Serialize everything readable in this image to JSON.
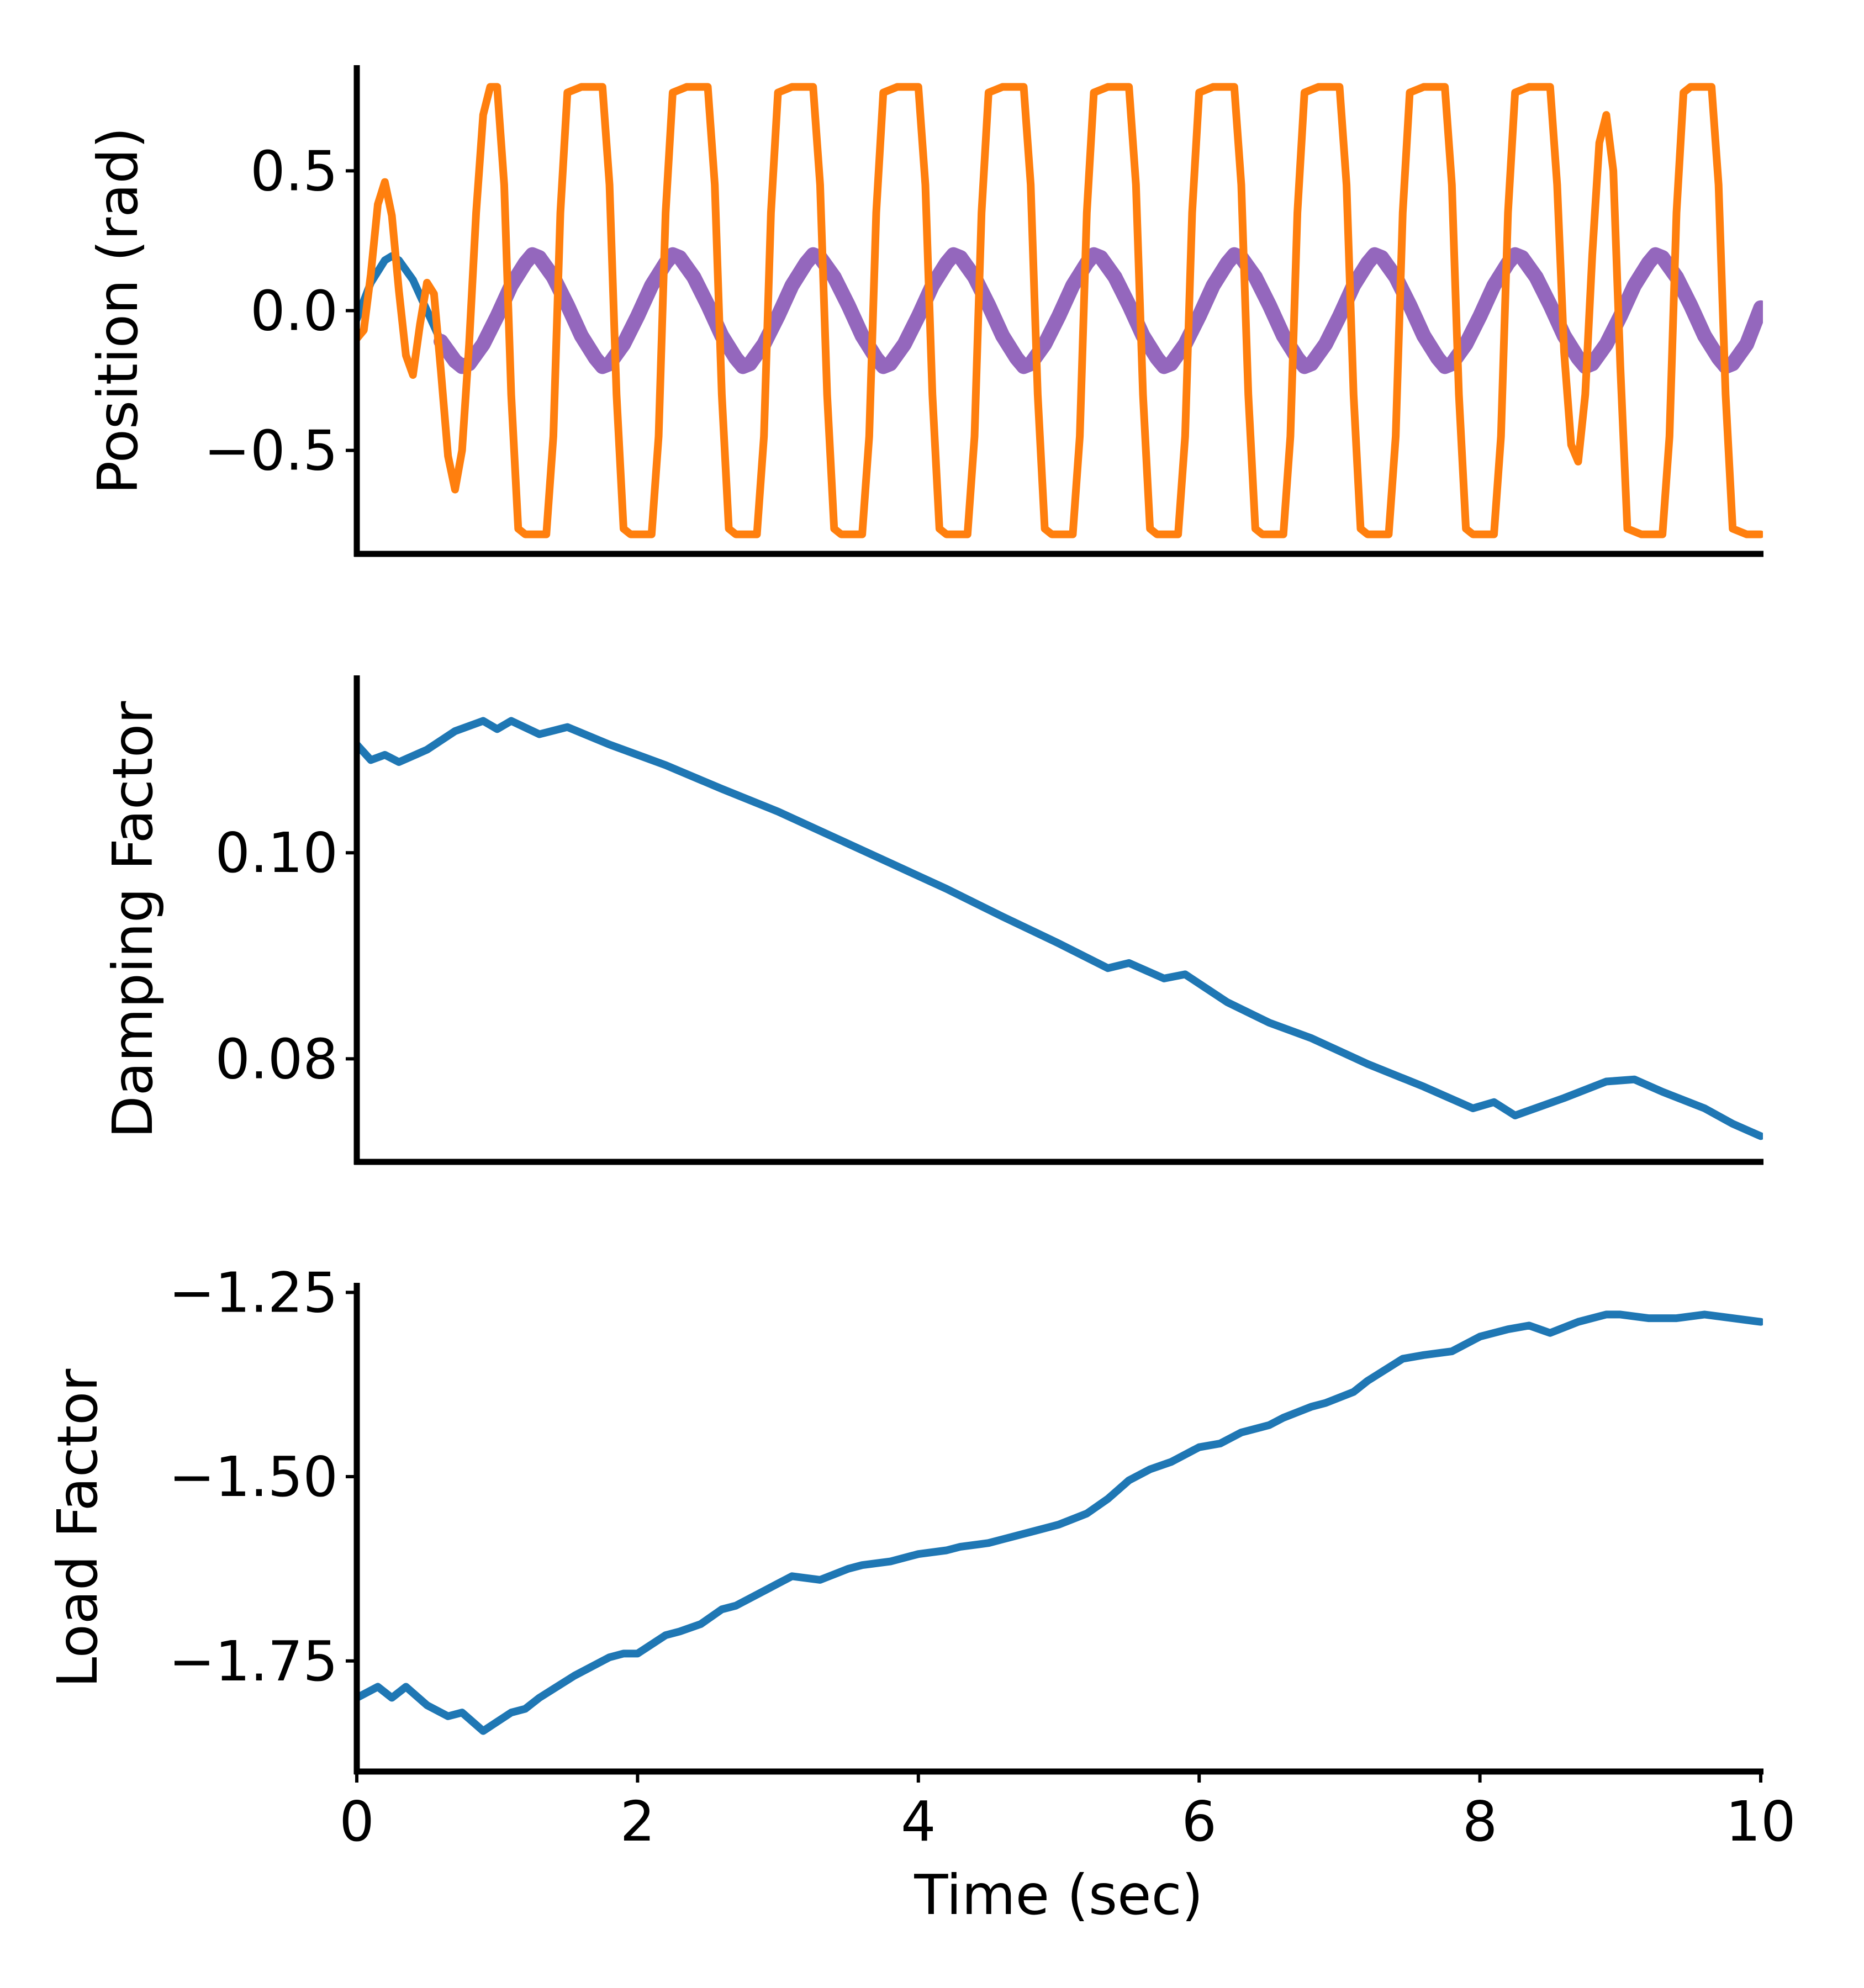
{
  "colors": {
    "series_blue": "#1f77b4",
    "series_orange": "#ff7f0e",
    "series_purple": "#9467bd",
    "axis": "#000000"
  },
  "chart_data": [
    {
      "type": "line",
      "ylabel": "Position (rad)",
      "xlabel": "",
      "xlim": [
        0,
        10
      ],
      "ylim": [
        -0.87,
        0.87
      ],
      "grid": false,
      "legend": "none",
      "yticks": [
        0.5,
        0.0,
        -0.5
      ],
      "ytick_labels": [
        "0.5",
        "0.0",
        "−0.5"
      ],
      "xticks": [],
      "series": [
        {
          "color": "#1f77b4",
          "x": [
            0,
            0.1,
            0.2,
            0.25,
            0.3,
            0.4,
            0.5,
            0.6,
            0.7,
            0.75,
            0.8,
            0.9,
            1.0,
            1.1,
            1.2,
            1.25
          ],
          "y": [
            -0.03,
            0.1,
            0.18,
            0.195,
            0.18,
            0.11,
            0.0,
            -0.11,
            -0.18,
            -0.195,
            -0.19,
            -0.12,
            -0.02,
            0.09,
            0.17,
            0.2
          ]
        },
        {
          "color": "#9467bd",
          "x": [
            0.6,
            0.7,
            0.75,
            0.8,
            0.9,
            1.0,
            1.1,
            1.2,
            1.25,
            1.3,
            1.4,
            1.5,
            1.6,
            1.7,
            1.75,
            1.8,
            1.9,
            2.0,
            2.1,
            2.2,
            2.25,
            2.3,
            2.4,
            2.5,
            2.6,
            2.7,
            2.75,
            2.8,
            2.9,
            3.0,
            3.1,
            3.2,
            3.25,
            3.3,
            3.4,
            3.5,
            3.6,
            3.7,
            3.75,
            3.8,
            3.9,
            4.0,
            4.1,
            4.2,
            4.25,
            4.3,
            4.4,
            4.5,
            4.6,
            4.7,
            4.75,
            4.8,
            4.9,
            5.0,
            5.1,
            5.2,
            5.25,
            5.3,
            5.4,
            5.5,
            5.6,
            5.7,
            5.75,
            5.8,
            5.9,
            6.0,
            6.1,
            6.2,
            6.25,
            6.3,
            6.4,
            6.5,
            6.6,
            6.7,
            6.75,
            6.8,
            6.9,
            7.0,
            7.1,
            7.2,
            7.25,
            7.3,
            7.4,
            7.5,
            7.6,
            7.7,
            7.75,
            7.8,
            7.9,
            8.0,
            8.1,
            8.2,
            8.25,
            8.3,
            8.4,
            8.5,
            8.6,
            8.7,
            8.75,
            8.8,
            8.9,
            9.0,
            9.1,
            9.2,
            9.25,
            9.3,
            9.4,
            9.5,
            9.6,
            9.7,
            9.75,
            9.8,
            9.9,
            10.0
          ],
          "y": [
            -0.11,
            -0.18,
            -0.2,
            -0.19,
            -0.12,
            -0.02,
            0.09,
            0.17,
            0.2,
            0.19,
            0.12,
            0.02,
            -0.09,
            -0.17,
            -0.2,
            -0.19,
            -0.12,
            -0.02,
            0.09,
            0.17,
            0.2,
            0.19,
            0.12,
            0.02,
            -0.09,
            -0.17,
            -0.2,
            -0.19,
            -0.12,
            -0.02,
            0.09,
            0.17,
            0.2,
            0.19,
            0.12,
            0.02,
            -0.09,
            -0.17,
            -0.2,
            -0.19,
            -0.12,
            -0.02,
            0.09,
            0.17,
            0.2,
            0.19,
            0.12,
            0.02,
            -0.09,
            -0.17,
            -0.2,
            -0.19,
            -0.12,
            -0.02,
            0.09,
            0.17,
            0.2,
            0.19,
            0.12,
            0.02,
            -0.09,
            -0.17,
            -0.2,
            -0.19,
            -0.12,
            -0.02,
            0.09,
            0.17,
            0.2,
            0.19,
            0.12,
            0.02,
            -0.09,
            -0.17,
            -0.2,
            -0.19,
            -0.12,
            -0.02,
            0.09,
            0.17,
            0.2,
            0.19,
            0.12,
            0.02,
            -0.09,
            -0.17,
            -0.2,
            -0.19,
            -0.12,
            -0.02,
            0.09,
            0.17,
            0.2,
            0.19,
            0.12,
            0.02,
            -0.09,
            -0.17,
            -0.2,
            -0.19,
            -0.12,
            -0.02,
            0.09,
            0.17,
            0.2,
            0.19,
            0.12,
            0.02,
            -0.09,
            -0.17,
            -0.2,
            -0.19,
            -0.12,
            0.01
          ]
        },
        {
          "color": "#ff7f0e",
          "x": [
            0,
            0.05,
            0.1,
            0.15,
            0.2,
            0.25,
            0.3,
            0.35,
            0.4,
            0.45,
            0.5,
            0.55,
            0.6,
            0.65,
            0.7,
            0.75,
            0.8,
            0.85,
            0.9,
            0.95,
            1.0,
            1.05,
            1.1,
            1.15,
            1.2,
            1.35,
            1.4,
            1.45,
            1.5,
            1.6,
            1.75,
            1.8,
            1.85,
            1.9,
            1.95,
            2.1,
            2.15,
            2.2,
            2.25,
            2.35,
            2.5,
            2.55,
            2.6,
            2.65,
            2.7,
            2.85,
            2.9,
            2.95,
            3.0,
            3.1,
            3.25,
            3.3,
            3.35,
            3.4,
            3.45,
            3.6,
            3.65,
            3.7,
            3.75,
            3.85,
            4.0,
            4.05,
            4.1,
            4.15,
            4.2,
            4.35,
            4.4,
            4.45,
            4.5,
            4.6,
            4.75,
            4.8,
            4.85,
            4.9,
            4.95,
            5.1,
            5.15,
            5.2,
            5.25,
            5.35,
            5.5,
            5.55,
            5.6,
            5.65,
            5.7,
            5.85,
            5.9,
            5.95,
            6.0,
            6.1,
            6.25,
            6.3,
            6.35,
            6.4,
            6.45,
            6.6,
            6.65,
            6.7,
            6.75,
            6.85,
            7.0,
            7.05,
            7.1,
            7.15,
            7.2,
            7.35,
            7.4,
            7.45,
            7.5,
            7.6,
            7.75,
            7.8,
            7.85,
            7.9,
            7.95,
            8.1,
            8.15,
            8.2,
            8.25,
            8.35,
            8.5,
            8.55,
            8.6,
            8.65,
            8.7,
            8.75,
            8.8,
            8.85,
            8.9,
            8.95,
            9.0,
            9.05,
            9.15,
            9.3,
            9.35,
            9.4,
            9.45,
            9.5,
            9.65,
            9.7,
            9.75,
            9.8,
            9.9,
            10.0
          ],
          "y": [
            -0.1,
            -0.07,
            0.13,
            0.38,
            0.46,
            0.34,
            0.07,
            -0.16,
            -0.23,
            -0.05,
            0.1,
            0.06,
            -0.22,
            -0.52,
            -0.64,
            -0.5,
            -0.12,
            0.35,
            0.7,
            0.8,
            0.8,
            0.45,
            -0.3,
            -0.78,
            -0.8,
            -0.8,
            -0.45,
            0.35,
            0.78,
            0.8,
            0.8,
            0.45,
            -0.3,
            -0.78,
            -0.8,
            -0.8,
            -0.45,
            0.35,
            0.78,
            0.8,
            0.8,
            0.45,
            -0.3,
            -0.78,
            -0.8,
            -0.8,
            -0.45,
            0.35,
            0.78,
            0.8,
            0.8,
            0.45,
            -0.3,
            -0.78,
            -0.8,
            -0.8,
            -0.45,
            0.35,
            0.78,
            0.8,
            0.8,
            0.45,
            -0.3,
            -0.78,
            -0.8,
            -0.8,
            -0.45,
            0.35,
            0.78,
            0.8,
            0.8,
            0.45,
            -0.3,
            -0.78,
            -0.8,
            -0.8,
            -0.45,
            0.35,
            0.78,
            0.8,
            0.8,
            0.45,
            -0.3,
            -0.78,
            -0.8,
            -0.8,
            -0.45,
            0.35,
            0.78,
            0.8,
            0.8,
            0.45,
            -0.3,
            -0.78,
            -0.8,
            -0.8,
            -0.45,
            0.35,
            0.78,
            0.8,
            0.8,
            0.45,
            -0.3,
            -0.78,
            -0.8,
            -0.8,
            -0.45,
            0.35,
            0.78,
            0.8,
            0.8,
            0.45,
            -0.3,
            -0.78,
            -0.8,
            -0.8,
            -0.45,
            0.35,
            0.78,
            0.8,
            0.8,
            0.45,
            -0.15,
            -0.48,
            -0.54,
            -0.3,
            0.2,
            0.6,
            0.7,
            0.5,
            -0.2,
            -0.78,
            -0.8,
            -0.8,
            -0.45,
            0.35,
            0.78,
            0.8,
            0.8,
            0.45,
            -0.3,
            -0.78,
            -0.8,
            -0.8
          ]
        }
      ]
    },
    {
      "type": "line",
      "ylabel": "Damping Factor",
      "xlabel": "",
      "xlim": [
        0,
        10
      ],
      "ylim": [
        0.07,
        0.117
      ],
      "grid": false,
      "legend": "none",
      "yticks": [
        0.1,
        0.08
      ],
      "ytick_labels": [
        "0.10",
        "0.08"
      ],
      "xticks": [],
      "series": [
        {
          "color": "#1f77b4",
          "x": [
            0,
            0.1,
            0.2,
            0.3,
            0.5,
            0.7,
            0.9,
            1.0,
            1.1,
            1.3,
            1.5,
            1.8,
            2.2,
            2.6,
            3.0,
            3.4,
            3.8,
            4.2,
            4.6,
            5.0,
            5.35,
            5.5,
            5.75,
            5.9,
            6.2,
            6.5,
            6.8,
            7.2,
            7.6,
            7.95,
            8.1,
            8.25,
            8.6,
            8.9,
            9.1,
            9.3,
            9.6,
            9.8,
            10.0
          ],
          "y": [
            0.1105,
            0.109,
            0.1095,
            0.1088,
            0.11,
            0.1118,
            0.1128,
            0.112,
            0.1128,
            0.1115,
            0.1122,
            0.1105,
            0.1085,
            0.1062,
            0.104,
            0.1015,
            0.099,
            0.0965,
            0.0938,
            0.0912,
            0.0888,
            0.0893,
            0.0878,
            0.0882,
            0.0855,
            0.0835,
            0.082,
            0.0795,
            0.0773,
            0.0752,
            0.0758,
            0.0745,
            0.0762,
            0.0778,
            0.078,
            0.0768,
            0.0752,
            0.0737,
            0.0725
          ]
        }
      ]
    },
    {
      "type": "line",
      "ylabel": "Load Factor",
      "xlabel": "Time (sec)",
      "xlim": [
        0,
        10
      ],
      "ylim": [
        -1.9,
        -1.24
      ],
      "grid": false,
      "legend": "none",
      "yticks": [
        -1.25,
        -1.5,
        -1.75
      ],
      "ytick_labels": [
        "−1.25",
        "−1.50",
        "−1.75"
      ],
      "xticks": [
        0,
        2,
        4,
        6,
        8,
        10
      ],
      "xtick_labels": [
        "0",
        "2",
        "4",
        "6",
        "8",
        "10"
      ],
      "series": [
        {
          "color": "#1f77b4",
          "x": [
            0,
            0.15,
            0.25,
            0.35,
            0.5,
            0.65,
            0.75,
            0.9,
            1.1,
            1.2,
            1.3,
            1.55,
            1.8,
            1.9,
            2.0,
            2.2,
            2.3,
            2.45,
            2.6,
            2.7,
            2.8,
            3.0,
            3.1,
            3.3,
            3.5,
            3.6,
            3.8,
            4.0,
            4.2,
            4.3,
            4.5,
            4.6,
            4.8,
            5.0,
            5.2,
            5.35,
            5.5,
            5.65,
            5.8,
            6.0,
            6.15,
            6.3,
            6.5,
            6.6,
            6.8,
            6.9,
            7.1,
            7.2,
            7.45,
            7.6,
            7.8,
            8.0,
            8.2,
            8.35,
            8.5,
            8.7,
            8.9,
            9.0,
            9.2,
            9.4,
            9.6,
            9.8,
            10.0
          ],
          "y": [
            -1.8,
            -1.785,
            -1.8,
            -1.785,
            -1.81,
            -1.825,
            -1.82,
            -1.845,
            -1.82,
            -1.815,
            -1.8,
            -1.77,
            -1.745,
            -1.74,
            -1.74,
            -1.715,
            -1.71,
            -1.7,
            -1.68,
            -1.675,
            -1.665,
            -1.645,
            -1.635,
            -1.64,
            -1.625,
            -1.62,
            -1.615,
            -1.605,
            -1.6,
            -1.595,
            -1.59,
            -1.585,
            -1.575,
            -1.565,
            -1.55,
            -1.53,
            -1.505,
            -1.49,
            -1.48,
            -1.46,
            -1.455,
            -1.44,
            -1.43,
            -1.42,
            -1.405,
            -1.4,
            -1.385,
            -1.37,
            -1.34,
            -1.335,
            -1.33,
            -1.31,
            -1.3,
            -1.295,
            -1.305,
            -1.29,
            -1.28,
            -1.28,
            -1.285,
            -1.285,
            -1.28,
            -1.285,
            -1.29
          ]
        }
      ]
    }
  ]
}
